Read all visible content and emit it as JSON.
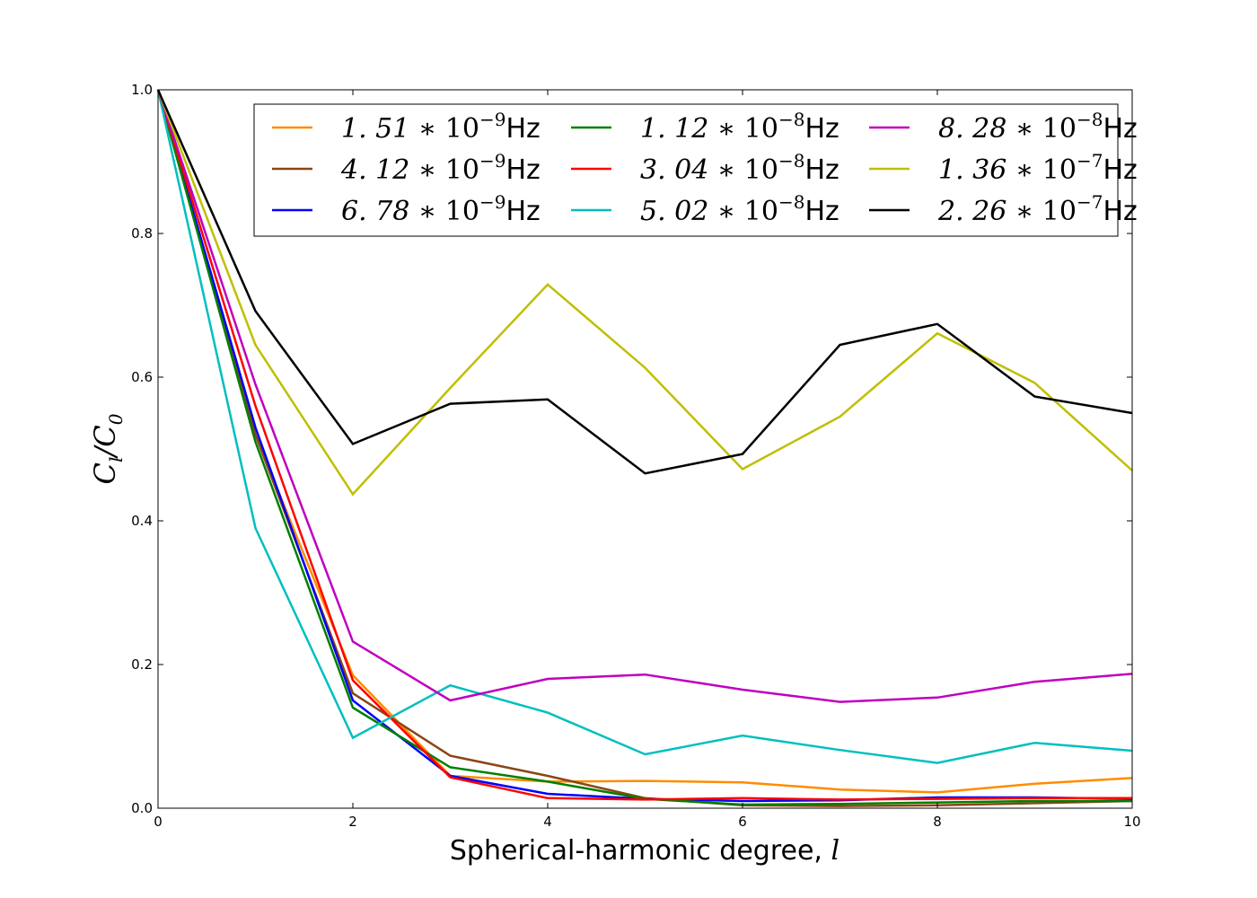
{
  "chart_data": {
    "type": "line",
    "title": "",
    "xlabel": "Spherical-harmonic degree, ",
    "xlabel_var": "l",
    "ylabel": "C_l / C_0",
    "xlim": [
      0,
      10
    ],
    "ylim": [
      0.0,
      1.0
    ],
    "xticks": [
      "0",
      "2",
      "4",
      "6",
      "8",
      "10"
    ],
    "yticks": [
      "0.0",
      "0.2",
      "0.4",
      "0.6",
      "0.8",
      "1.0"
    ],
    "x": [
      0,
      1,
      2,
      3,
      4,
      5,
      6,
      7,
      8,
      9,
      10
    ],
    "legend_position": "top-right",
    "series": [
      {
        "name": "1.51*10^-9 Hz",
        "mantissa": "1.51",
        "exponent": "-9",
        "unit": "Hz",
        "color": "#ff8c00",
        "values": [
          1.0,
          0.52,
          0.185,
          0.045,
          0.037,
          0.038,
          0.036,
          0.026,
          0.022,
          0.034,
          0.042
        ]
      },
      {
        "name": "4.12*10^-9 Hz",
        "mantissa": "4.12",
        "exponent": "-9",
        "unit": "Hz",
        "color": "#8b4513",
        "values": [
          1.0,
          0.52,
          0.16,
          0.073,
          0.045,
          0.014,
          0.004,
          0.003,
          0.004,
          0.007,
          0.01
        ]
      },
      {
        "name": "6.78*10^-9 Hz",
        "mantissa": "6.78",
        "exponent": "-9",
        "unit": "Hz",
        "color": "#0000ff",
        "values": [
          1.0,
          0.53,
          0.15,
          0.045,
          0.02,
          0.013,
          0.01,
          0.011,
          0.015,
          0.015,
          0.013
        ]
      },
      {
        "name": "1.12*10^-8 Hz",
        "mantissa": "1.12",
        "exponent": "-8",
        "unit": "Hz",
        "color": "#008000",
        "values": [
          1.0,
          0.51,
          0.14,
          0.057,
          0.037,
          0.013,
          0.005,
          0.006,
          0.008,
          0.01,
          0.01
        ]
      },
      {
        "name": "3.04*10^-8 Hz",
        "mantissa": "3.04",
        "exponent": "-8",
        "unit": "Hz",
        "color": "#ff0000",
        "values": [
          1.0,
          0.56,
          0.178,
          0.043,
          0.014,
          0.012,
          0.014,
          0.012,
          0.013,
          0.014,
          0.014
        ]
      },
      {
        "name": "5.02*10^-8 Hz",
        "mantissa": "5.02",
        "exponent": "-8",
        "unit": "Hz",
        "color": "#00bfbf",
        "values": [
          1.0,
          0.39,
          0.098,
          0.171,
          0.133,
          0.075,
          0.101,
          0.081,
          0.063,
          0.091,
          0.08
        ]
      },
      {
        "name": "8.28*10^-8 Hz",
        "mantissa": "8.28",
        "exponent": "-8",
        "unit": "Hz",
        "color": "#bf00bf",
        "values": [
          1.0,
          0.59,
          0.232,
          0.15,
          0.18,
          0.186,
          0.165,
          0.148,
          0.154,
          0.176,
          0.187
        ]
      },
      {
        "name": "1.36*10^-7 Hz",
        "mantissa": "1.36",
        "exponent": "-7",
        "unit": "Hz",
        "color": "#bfbf00",
        "values": [
          1.0,
          0.645,
          0.437,
          0.585,
          0.729,
          0.613,
          0.472,
          0.545,
          0.661,
          0.592,
          0.47
        ]
      },
      {
        "name": "2.26*10^-7 Hz",
        "mantissa": "2.26",
        "exponent": "-7",
        "unit": "Hz",
        "color": "#000000",
        "values": [
          1.0,
          0.692,
          0.507,
          0.563,
          0.569,
          0.466,
          0.493,
          0.645,
          0.674,
          0.573,
          0.55
        ]
      }
    ]
  }
}
